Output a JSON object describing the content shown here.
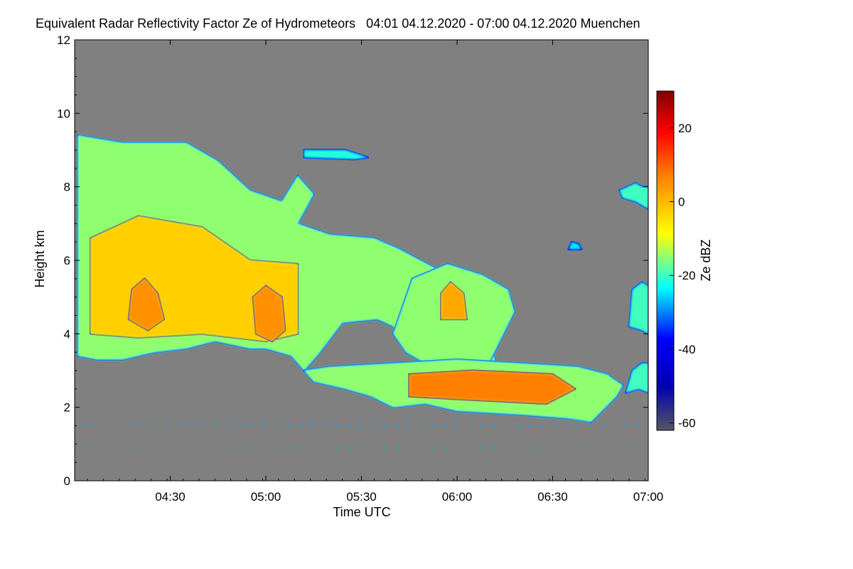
{
  "chart_data": {
    "type": "heatmap",
    "title": "Equivalent Radar Reflectivity Factor Ze of Hydrometeors   04:01 04.12.2020 - 07:00 04.12.2020 Muenchen",
    "xlabel": "Time UTC",
    "ylabel": "Height km",
    "x_range": [
      "04:01",
      "07:00"
    ],
    "x_ticks": [
      "04:30",
      "05:00",
      "05:30",
      "06:00",
      "06:30",
      "07:00"
    ],
    "y_range": [
      0,
      12
    ],
    "y_ticks": [
      "0",
      "2",
      "4",
      "6",
      "8",
      "10",
      "12"
    ],
    "no_signal_color": "#808080",
    "colorbar": {
      "label": "Ze dBZ",
      "range": [
        -62,
        30
      ],
      "ticks": [
        "20",
        "0",
        "-20",
        "-40",
        "-60"
      ],
      "colormap": "jet"
    },
    "regions": [
      {
        "name": "upper-cloud",
        "dbz": -15,
        "outline": [
          [
            "04:01",
            3.4
          ],
          [
            "04:01",
            9.4
          ],
          [
            "04:15",
            9.2
          ],
          [
            "04:35",
            9.2
          ],
          [
            "04:45",
            8.7
          ],
          [
            "04:55",
            7.9
          ],
          [
            "05:05",
            7.6
          ],
          [
            "05:10",
            8.3
          ],
          [
            "05:15",
            7.8
          ],
          [
            "05:10",
            7.0
          ],
          [
            "05:20",
            6.7
          ],
          [
            "05:34",
            6.6
          ],
          [
            "05:42",
            6.3
          ],
          [
            "05:55",
            5.7
          ],
          [
            "06:07",
            5.2
          ],
          [
            "06:09",
            4.6
          ],
          [
            "06:12",
            3.2
          ],
          [
            "06:08",
            3.0
          ],
          [
            "05:55",
            3.15
          ],
          [
            "05:46",
            3.6
          ],
          [
            "05:40",
            4.2
          ],
          [
            "05:35",
            4.4
          ],
          [
            "05:24",
            4.3
          ],
          [
            "05:17",
            3.5
          ],
          [
            "05:12",
            3.0
          ],
          [
            "05:08",
            3.4
          ],
          [
            "05:00",
            3.6
          ],
          [
            "04:55",
            3.6
          ],
          [
            "04:44",
            3.8
          ],
          [
            "04:35",
            3.6
          ],
          [
            "04:25",
            3.5
          ],
          [
            "04:15",
            3.3
          ],
          [
            "04:07",
            3.3
          ]
        ]
      },
      {
        "name": "upper-cloud-core",
        "dbz": -2,
        "outline": [
          [
            "04:05",
            4.0
          ],
          [
            "04:05",
            6.6
          ],
          [
            "04:20",
            7.2
          ],
          [
            "04:40",
            6.9
          ],
          [
            "04:55",
            6.0
          ],
          [
            "05:10",
            5.9
          ],
          [
            "05:10",
            4.0
          ],
          [
            "05:00",
            3.8
          ],
          [
            "04:40",
            4.0
          ],
          [
            "04:20",
            3.9
          ]
        ]
      },
      {
        "name": "upper-cloud-max",
        "dbz": 6,
        "outline": [
          [
            "04:17",
            4.4
          ],
          [
            "04:18",
            5.2
          ],
          [
            "04:22",
            5.5
          ],
          [
            "04:26",
            5.1
          ],
          [
            "04:28",
            4.4
          ],
          [
            "04:23",
            4.1
          ]
        ]
      },
      {
        "name": "upper-cloud-max-2",
        "dbz": 6,
        "outline": [
          [
            "04:57",
            4.0
          ],
          [
            "04:56",
            5.0
          ],
          [
            "05:00",
            5.3
          ],
          [
            "05:05",
            5.0
          ],
          [
            "05:06",
            4.1
          ],
          [
            "05:02",
            3.8
          ]
        ]
      },
      {
        "name": "descending-cloud",
        "dbz": -15,
        "outline": [
          [
            "05:40",
            4.0
          ],
          [
            "05:46",
            5.5
          ],
          [
            "05:57",
            5.9
          ],
          [
            "06:08",
            5.6
          ],
          [
            "06:16",
            5.2
          ],
          [
            "06:18",
            4.6
          ],
          [
            "06:10",
            3.2
          ],
          [
            "05:52",
            3.1
          ],
          [
            "05:44",
            3.5
          ]
        ]
      },
      {
        "name": "descending-cloud-core",
        "dbz": 3,
        "outline": [
          [
            "05:55",
            4.4
          ],
          [
            "05:55",
            5.1
          ],
          [
            "05:58",
            5.4
          ],
          [
            "06:02",
            5.1
          ],
          [
            "06:03",
            4.4
          ]
        ]
      },
      {
        "name": "lower-layer",
        "dbz": -15,
        "outline": [
          [
            "05:12",
            3.0
          ],
          [
            "05:20",
            3.1
          ],
          [
            "05:40",
            3.2
          ],
          [
            "06:00",
            3.3
          ],
          [
            "06:20",
            3.2
          ],
          [
            "06:38",
            3.1
          ],
          [
            "06:47",
            2.9
          ],
          [
            "06:52",
            2.6
          ],
          [
            "06:50",
            2.3
          ],
          [
            "06:42",
            1.6
          ],
          [
            "06:35",
            1.7
          ],
          [
            "06:20",
            1.8
          ],
          [
            "06:00",
            1.9
          ],
          [
            "05:50",
            2.1
          ],
          [
            "05:40",
            2.0
          ],
          [
            "05:33",
            2.3
          ],
          [
            "05:25",
            2.5
          ],
          [
            "05:15",
            2.7
          ]
        ]
      },
      {
        "name": "lower-layer-core",
        "dbz": 8,
        "outline": [
          [
            "05:45",
            2.3
          ],
          [
            "05:45",
            2.9
          ],
          [
            "06:05",
            3.0
          ],
          [
            "06:30",
            2.9
          ],
          [
            "06:37",
            2.5
          ],
          [
            "06:28",
            2.1
          ],
          [
            "06:05",
            2.2
          ]
        ]
      },
      {
        "name": "upper-right-fragment",
        "dbz": -20,
        "outline": [
          [
            "06:51",
            7.9
          ],
          [
            "06:56",
            8.1
          ],
          [
            "06:58",
            8.0
          ],
          [
            "07:00",
            8.0
          ],
          [
            "07:00",
            7.4
          ],
          [
            "06:56",
            7.6
          ],
          [
            "06:52",
            7.7
          ]
        ]
      },
      {
        "name": "right-edge-fragment",
        "dbz": -20,
        "outline": [
          [
            "06:54",
            4.2
          ],
          [
            "06:55",
            5.2
          ],
          [
            "06:58",
            5.4
          ],
          [
            "07:00",
            5.3
          ],
          [
            "07:00",
            4.0
          ],
          [
            "06:58",
            4.1
          ]
        ]
      },
      {
        "name": "right-edge-lower-fragment",
        "dbz": -20,
        "outline": [
          [
            "06:53",
            2.4
          ],
          [
            "06:55",
            3.0
          ],
          [
            "06:58",
            3.2
          ],
          [
            "07:00",
            3.2
          ],
          [
            "07:00",
            2.4
          ],
          [
            "06:57",
            2.5
          ]
        ]
      },
      {
        "name": "small-fragment-6-45",
        "dbz": -25,
        "outline": [
          [
            "06:35",
            6.3
          ],
          [
            "06:36",
            6.5
          ],
          [
            "06:38",
            6.45
          ],
          [
            "06:39",
            6.3
          ]
        ]
      },
      {
        "name": "thin-cirrus-5-10",
        "dbz": -22,
        "outline": [
          [
            "05:12",
            9.0
          ],
          [
            "05:12",
            8.8
          ],
          [
            "05:28",
            8.75
          ],
          [
            "05:32",
            8.8
          ],
          [
            "05:25",
            9.0
          ]
        ]
      }
    ],
    "ground_clutter": [
      {
        "height": 1.5,
        "dbz": -28
      },
      {
        "height": 0.9,
        "dbz": -28
      }
    ]
  }
}
